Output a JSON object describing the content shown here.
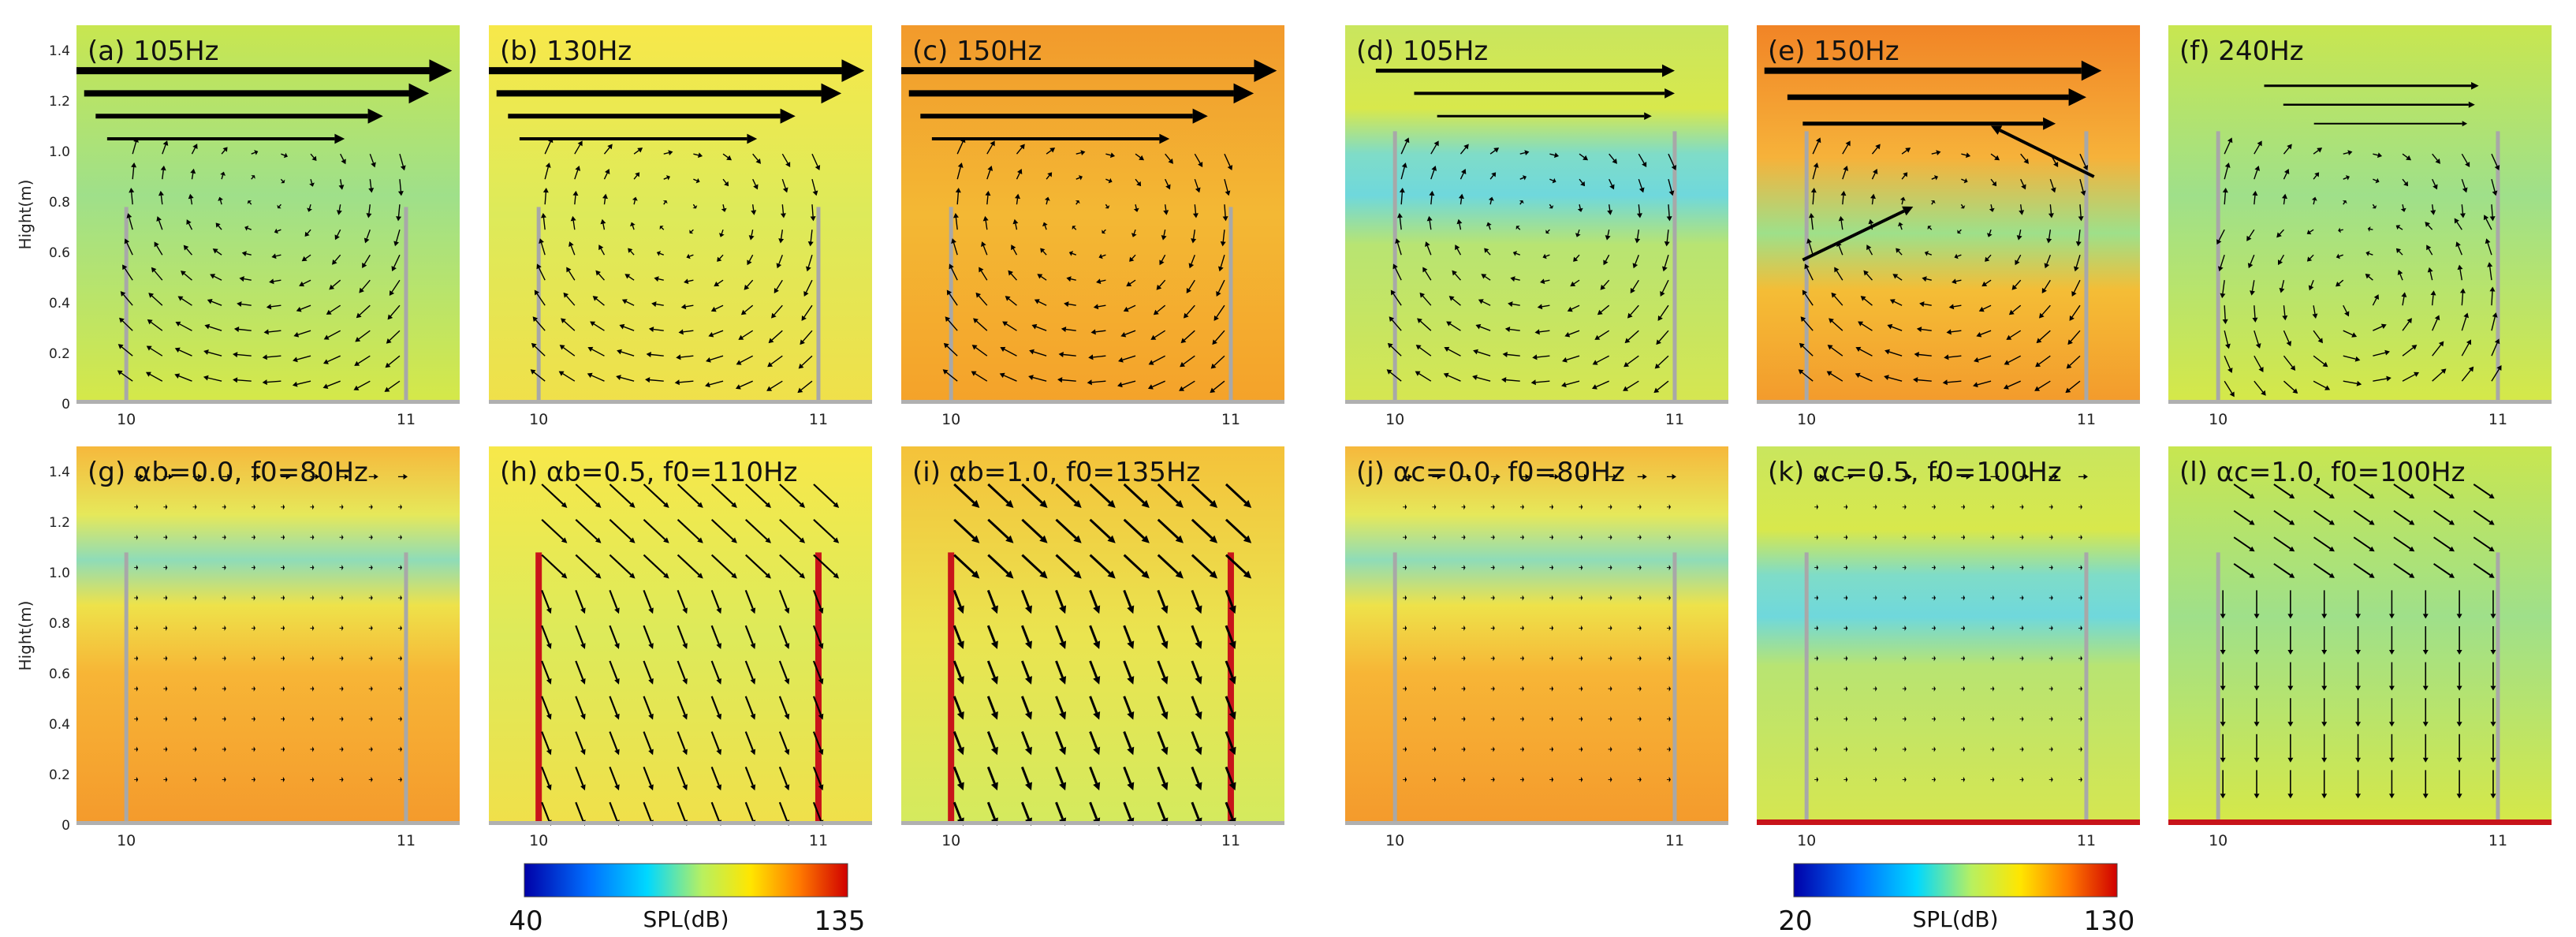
{
  "axis": {
    "ylabel": "Hight(m)",
    "yticks": [
      "0",
      "0.2",
      "0.4",
      "0.6",
      "0.8",
      "1.0",
      "1.2",
      "1.4"
    ],
    "xticks": [
      "10",
      "11"
    ]
  },
  "panels": [
    {
      "id": "a",
      "title": "(a) 105Hz",
      "bg": "green",
      "barrier": "plain-short",
      "flow": "vortex-low",
      "ground": "none"
    },
    {
      "id": "b",
      "title": "(b) 130Hz",
      "bg": "yellow",
      "barrier": "plain-short",
      "flow": "vortex-mid",
      "ground": "none"
    },
    {
      "id": "c",
      "title": "(c) 150Hz",
      "bg": "orange",
      "barrier": "plain-short",
      "flow": "vortex-mid",
      "ground": "none"
    },
    {
      "id": "d",
      "title": "(d) 105Hz",
      "bg": "cyanband",
      "barrier": "plain-tall",
      "flow": "cavity-weak",
      "ground": "none"
    },
    {
      "id": "e",
      "title": "(e) 150Hz",
      "bg": "orangeband",
      "barrier": "plain-tall",
      "flow": "cavity-cross",
      "ground": "none"
    },
    {
      "id": "f",
      "title": "(f) 240Hz",
      "bg": "green",
      "barrier": "plain-tall",
      "flow": "double-vortex",
      "ground": "none"
    },
    {
      "id": "g",
      "title": "(g) αb=0.0, f0=80Hz",
      "bg": "orangebottom",
      "barrier": "plain-tall",
      "flow": "tiny",
      "ground": "none"
    },
    {
      "id": "h",
      "title": "(h) αb=0.5, f0=110Hz",
      "bg": "yellow",
      "barrier": "red-tall",
      "flow": "diagonal",
      "ground": "none"
    },
    {
      "id": "i",
      "title": "(i) αb=1.0, f0=135Hz",
      "bg": "yellowgreen",
      "barrier": "red-tall",
      "flow": "diagonal-strong",
      "ground": "none"
    },
    {
      "id": "j",
      "title": "(j) αc=0.0, f0=80Hz",
      "bg": "orangebottom",
      "barrier": "plain-tall",
      "flow": "tiny",
      "ground": "none"
    },
    {
      "id": "k",
      "title": "(k) αc=0.5, f0=100Hz",
      "bg": "cyanband",
      "barrier": "plain-tall",
      "flow": "tiny",
      "ground": "red"
    },
    {
      "id": "l",
      "title": "(l) αc=1.0, f0=100Hz",
      "bg": "green",
      "barrier": "plain-tall",
      "flow": "downward",
      "ground": "red"
    }
  ],
  "colorbars": [
    {
      "min": "40",
      "max": "135",
      "label": "SPL(dB)"
    },
    {
      "min": "20",
      "max": "130",
      "label": "SPL(dB)"
    }
  ]
}
